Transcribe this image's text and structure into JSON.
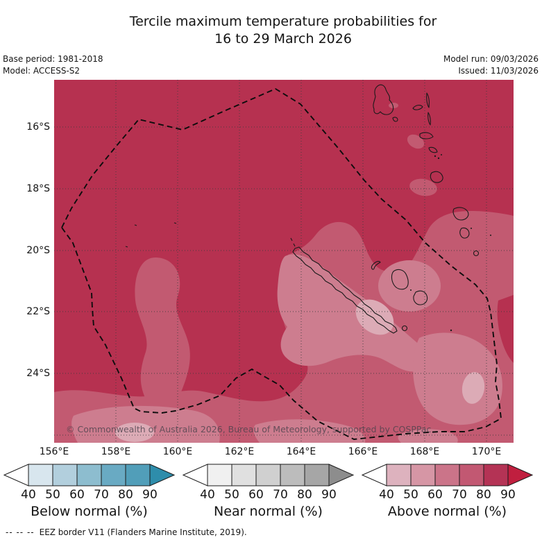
{
  "header": {
    "title_line1": "Tercile maximum temperature probabilities for",
    "title_line2": "16 to 29 March 2026",
    "base_period": "Base period: 1981-2018",
    "model": "Model: ACCESS-S2",
    "model_run": "Model run: 09/03/2026",
    "issued": "Issued: 11/03/2026"
  },
  "map": {
    "copyright": "© Commonwealth of Australia 2026, Bureau of Meteorology, supported by COSPPac",
    "shade_colors": {
      "p80_90": "#b63150",
      "p70_80": "#c25a71",
      "p60_70": "#cd7d8f",
      "p50_60": "#dcabb6"
    },
    "line_colors": {
      "grid": "#3c3c3c",
      "coast": "#1a1a1a",
      "eez": "#0d0d0d"
    }
  },
  "chart_data": {
    "type": "heatmap",
    "title": "Tercile maximum temperature probabilities for 16 to 29 March 2026",
    "x_ticks": [
      "156°E",
      "158°E",
      "160°E",
      "162°E",
      "164°E",
      "166°E",
      "168°E",
      "170°E"
    ],
    "y_ticks": [
      "16°S",
      "18°S",
      "20°S",
      "22°S",
      "24°S"
    ],
    "x_range_deg_east": [
      156,
      170.8
    ],
    "y_range_deg_south": [
      14.5,
      26.2
    ],
    "grid": true,
    "field_note": "Shaded probability field: mostly 80-90%+ above-normal (dark crimson) across the region, decreasing through 70-80% and 60-70% to 50-60% (palest pink) around southern New Caledonia, the far south-east and the southern map edge; dashed polygon is the EEZ border.",
    "legends": [
      {
        "label": "Below normal (%)",
        "tick_labels": [
          "40",
          "50",
          "60",
          "70",
          "80",
          "90"
        ],
        "segment_colors": [
          "#d8e6ee",
          "#b2cfdd",
          "#8dbdcf",
          "#69aac3",
          "#519eb9"
        ],
        "under_arrow_color": "#ffffff",
        "over_arrow_color": "#2e8dab"
      },
      {
        "label": "Near normal (%)",
        "tick_labels": [
          "40",
          "50",
          "60",
          "70",
          "80",
          "90"
        ],
        "segment_colors": [
          "#f0f0f0",
          "#e0e0e0",
          "#d0d0d0",
          "#bcbcbc",
          "#a6a6a6"
        ],
        "under_arrow_color": "#ffffff",
        "over_arrow_color": "#8d8d8d"
      },
      {
        "label": "Above normal (%)",
        "tick_labels": [
          "40",
          "50",
          "60",
          "70",
          "80",
          "90"
        ],
        "segment_colors": [
          "#ddb2be",
          "#d696a5",
          "#cb7489",
          "#c25872",
          "#b43355"
        ],
        "under_arrow_color": "#ffffff",
        "over_arrow_color": "#c01f3f"
      }
    ]
  },
  "footer": {
    "dash_sample": "--  --  --",
    "text": "EEZ border V11 (Flanders Marine Institute, 2019)."
  }
}
